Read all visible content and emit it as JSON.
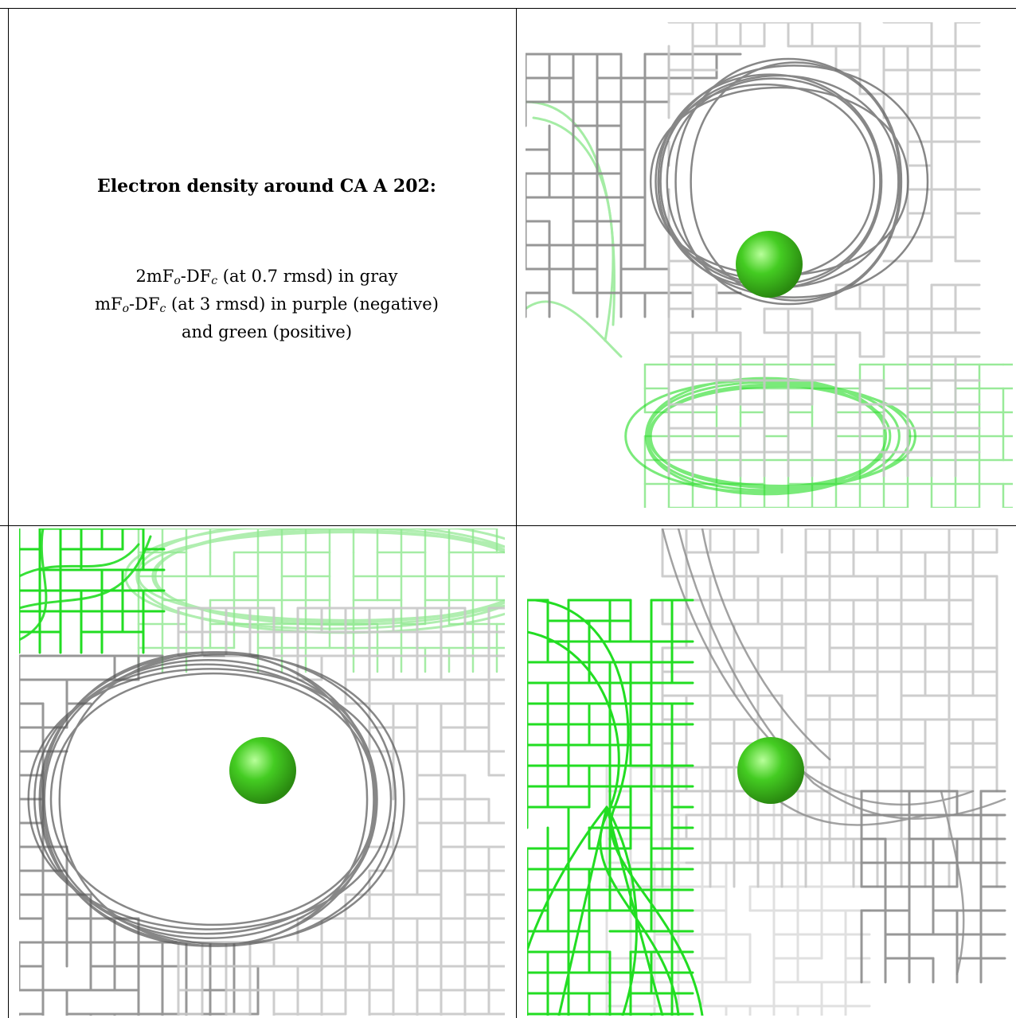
{
  "caption": {
    "title": "Electron density around CA A 202:",
    "line1": {
      "a": "2mF",
      "sub1": "o",
      "b": "-DF",
      "sub2": "c",
      "c": " (at 0.7 rmsd) in gray"
    },
    "line2": {
      "a": "mF",
      "sub1": "o",
      "b": "-DF",
      "sub2": "c",
      "c": " (at 3 rmsd) in purple (negative)"
    },
    "line3": "and green (positive)"
  },
  "colors": {
    "mesh_gray_dark": "#555555",
    "mesh_gray_mid": "#8c8c8c",
    "mesh_gray_light": "#c8c8c8",
    "mesh_green": "#22dd22",
    "mesh_green_light": "#8fe88f",
    "ion_sphere": "#44cc22"
  },
  "panels": [
    {
      "name": "view-1",
      "label": ""
    },
    {
      "name": "view-2",
      "label": ""
    },
    {
      "name": "view-3",
      "label": ""
    }
  ]
}
